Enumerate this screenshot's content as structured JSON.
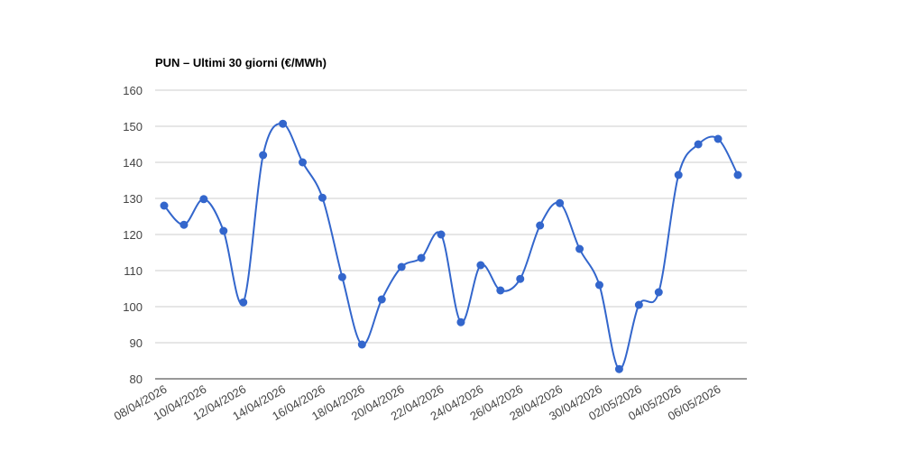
{
  "chart_data": {
    "type": "line",
    "title": "PUN – Ultimi 30 giorni (€/MWh)",
    "categories": [
      "08/04/2026",
      null,
      "10/04/2026",
      null,
      "12/04/2026",
      null,
      "14/04/2026",
      null,
      "16/04/2026",
      null,
      "18/04/2026",
      null,
      "20/04/2026",
      null,
      "22/04/2026",
      null,
      "24/04/2026",
      null,
      "26/04/2026",
      null,
      "28/04/2026",
      null,
      "30/04/2026",
      null,
      "02/05/2026",
      null,
      "04/05/2026",
      null,
      "06/05/2026",
      null
    ],
    "series": [
      {
        "name": "PUN",
        "color": "#3366cc",
        "values": [
          128,
          122.7,
          129.8,
          121,
          101.2,
          142,
          150.7,
          140,
          130.2,
          108.2,
          89.5,
          102,
          111,
          113.5,
          120,
          95.7,
          111.5,
          104.5,
          107.7,
          122.5,
          128.7,
          116,
          106,
          82.7,
          100.5,
          104,
          136.5,
          145,
          146.5,
          136.5
        ]
      }
    ],
    "ylim": [
      80,
      160
    ],
    "yticks": [
      80,
      90,
      100,
      110,
      120,
      130,
      140,
      150,
      160
    ],
    "grid": true,
    "smooth": true
  }
}
